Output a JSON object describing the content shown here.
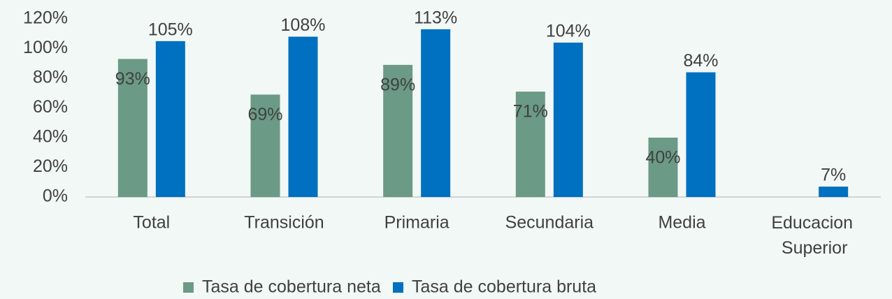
{
  "chart_data": {
    "type": "bar",
    "categories": [
      "Total",
      "Transición",
      "Primaria",
      "Secundaria",
      "Media",
      "Educacion Superior"
    ],
    "series": [
      {
        "name": "Tasa de cobertura neta",
        "color": "#6b9a86",
        "values": [
          93,
          69,
          89,
          71,
          40,
          null
        ],
        "value_labels": [
          "93%",
          "69%",
          "89%",
          "71%",
          "40%",
          null
        ]
      },
      {
        "name": "Tasa de cobertura bruta",
        "color": "#0070c0",
        "values": [
          105,
          108,
          113,
          104,
          84,
          7
        ],
        "value_labels": [
          "105%",
          "108%",
          "113%",
          "104%",
          "84%",
          "7%"
        ]
      }
    ],
    "ylim": [
      0,
      120
    ],
    "yticks": [
      {
        "value": 0,
        "label": "0%"
      },
      {
        "value": 20,
        "label": "20%"
      },
      {
        "value": 40,
        "label": "40%"
      },
      {
        "value": 60,
        "label": "60%"
      },
      {
        "value": 80,
        "label": "80%"
      },
      {
        "value": 100,
        "label": "100%"
      },
      {
        "value": 120,
        "label": "120%"
      }
    ],
    "grid": false,
    "legend": "bottom"
  }
}
